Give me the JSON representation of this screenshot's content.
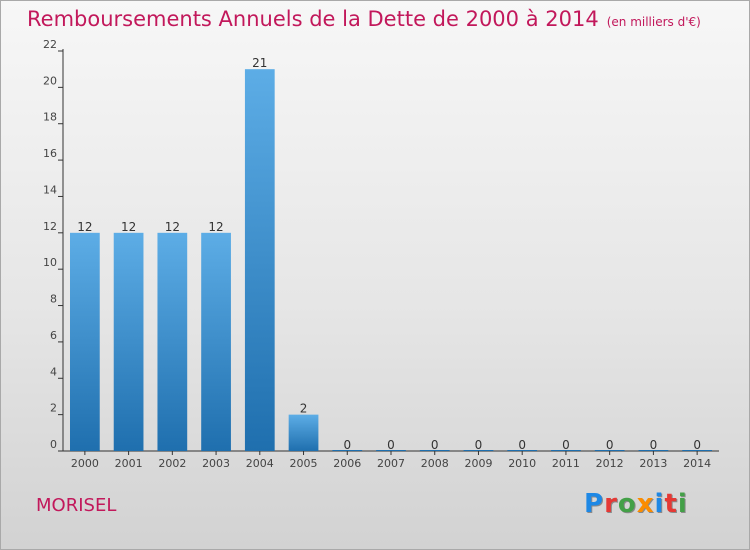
{
  "title": "Remboursements Annuels de la Dette de 2000 à 2014",
  "unit": "(en milliers d'€)",
  "commune": "MORISEL",
  "logo": {
    "letters": [
      "P",
      "r",
      "o",
      "x",
      "i",
      "t",
      "i"
    ],
    "colors": [
      "#1e88e5",
      "#e53935",
      "#43a047",
      "#fb8c00",
      "#1e88e5",
      "#e53935",
      "#43a047"
    ]
  },
  "colors": {
    "bar_top": "#5dade6",
    "bar_bottom": "#1f6fae",
    "title": "#c2185b",
    "axis": "#333333"
  },
  "chart_data": {
    "type": "bar",
    "title": "Remboursements Annuels de la Dette de 2000 à 2014",
    "xlabel": "",
    "ylabel": "",
    "categories": [
      "2000",
      "2001",
      "2002",
      "2003",
      "2004",
      "2005",
      "2006",
      "2007",
      "2008",
      "2009",
      "2010",
      "2011",
      "2012",
      "2013",
      "2014"
    ],
    "values": [
      12,
      12,
      12,
      12,
      21,
      2,
      0,
      0,
      0,
      0,
      0,
      0,
      0,
      0,
      0
    ],
    "ylim": [
      0,
      22
    ],
    "yticks": [
      0,
      2,
      4,
      6,
      8,
      10,
      12,
      14,
      16,
      18,
      20,
      22
    ],
    "grid": false,
    "data_labels": true
  }
}
